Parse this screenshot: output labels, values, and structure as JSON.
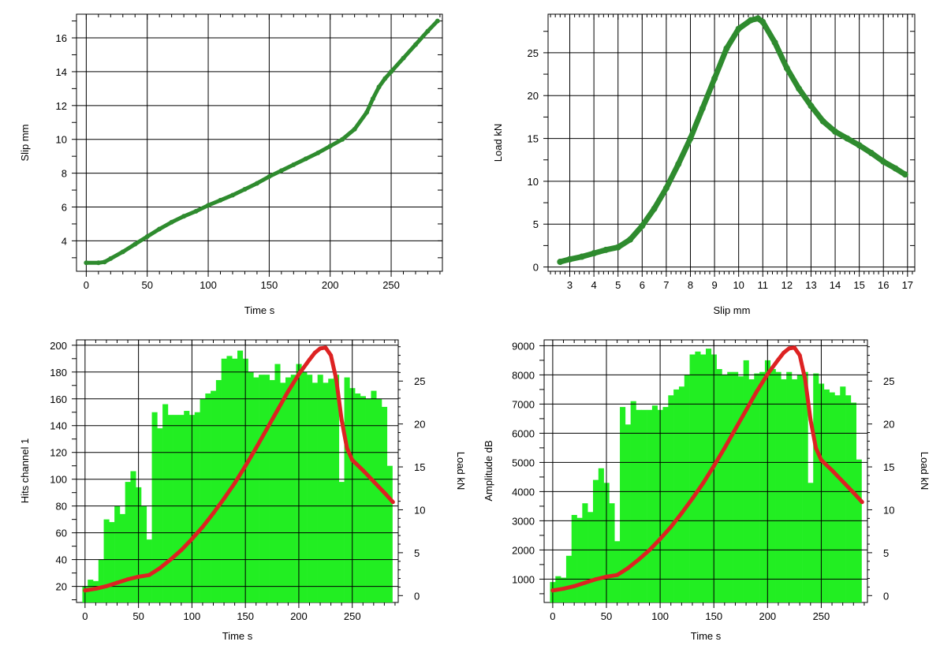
{
  "chart_data": [
    {
      "type": "line",
      "xlabel": "Time s",
      "ylabel": "Slip mm",
      "xlim": [
        -8,
        292
      ],
      "ylim": [
        2.2,
        17.4
      ],
      "xticks": [
        0,
        50,
        100,
        150,
        200,
        250
      ],
      "yticks": [
        4,
        6,
        8,
        10,
        12,
        14,
        16
      ],
      "grid": true,
      "series": [
        {
          "color": "#2e8b2e",
          "x": [
            0,
            10,
            15,
            20,
            30,
            40,
            50,
            60,
            70,
            80,
            90,
            100,
            110,
            120,
            130,
            140,
            150,
            160,
            170,
            180,
            190,
            200,
            210,
            220,
            230,
            235,
            240,
            245,
            250,
            260,
            270,
            280,
            288
          ],
          "y": [
            2.7,
            2.7,
            2.75,
            2.95,
            3.35,
            3.8,
            4.25,
            4.7,
            5.1,
            5.45,
            5.75,
            6.1,
            6.4,
            6.7,
            7.05,
            7.4,
            7.8,
            8.15,
            8.5,
            8.85,
            9.2,
            9.6,
            10.0,
            10.6,
            11.6,
            12.4,
            13.1,
            13.6,
            14.0,
            14.8,
            15.6,
            16.4,
            17.0
          ]
        }
      ]
    },
    {
      "type": "scatter",
      "xlabel": "Slip mm",
      "ylabel": "Load kN",
      "xlim": [
        2.1,
        17.3
      ],
      "ylim": [
        -0.5,
        29.5
      ],
      "xticks": [
        3,
        4,
        5,
        6,
        7,
        8,
        9,
        10,
        11,
        12,
        13,
        14,
        15,
        16,
        17
      ],
      "yticks": [
        0,
        5,
        10,
        15,
        20,
        25
      ],
      "grid": true,
      "series": [
        {
          "color": "#2e8b2e",
          "x": [
            2.6,
            3.0,
            3.5,
            4.0,
            4.5,
            5.0,
            5.5,
            6.0,
            6.5,
            7.0,
            7.5,
            8.0,
            8.5,
            9.0,
            9.5,
            10.0,
            10.5,
            10.8,
            11.0,
            11.5,
            12.0,
            12.5,
            13.0,
            13.5,
            14.0,
            14.5,
            15.0,
            15.5,
            16.0,
            16.5,
            16.9
          ],
          "y": [
            0.6,
            0.9,
            1.2,
            1.6,
            2.0,
            2.3,
            3.2,
            4.8,
            6.8,
            9.2,
            12.0,
            15.0,
            18.5,
            22.0,
            25.5,
            27.8,
            28.8,
            29.0,
            28.6,
            26.2,
            23.2,
            20.8,
            18.8,
            17.0,
            15.8,
            15.0,
            14.2,
            13.3,
            12.3,
            11.5,
            10.8
          ]
        }
      ]
    },
    {
      "type": "bar",
      "xlabel": "Time s",
      "ylabel": "Hits channel 1",
      "y2label": "Load kN",
      "xlim": [
        -8,
        293
      ],
      "ylim": [
        8,
        204
      ],
      "y2lim": [
        -0.8,
        29.8
      ],
      "xticks": [
        0,
        50,
        100,
        150,
        200,
        250
      ],
      "yticks": [
        20,
        40,
        60,
        80,
        100,
        120,
        140,
        160,
        180,
        200
      ],
      "y2ticks": [
        0,
        5,
        10,
        15,
        20,
        25
      ],
      "grid": true,
      "bars": {
        "color": "#22ee22",
        "x": [
          0,
          5,
          10,
          15,
          20,
          25,
          30,
          35,
          40,
          45,
          50,
          55,
          60,
          65,
          70,
          75,
          80,
          85,
          90,
          95,
          100,
          105,
          110,
          115,
          120,
          125,
          130,
          135,
          140,
          145,
          150,
          155,
          160,
          165,
          170,
          175,
          180,
          185,
          190,
          195,
          200,
          205,
          210,
          215,
          220,
          225,
          230,
          235,
          240,
          245,
          250,
          255,
          260,
          265,
          270,
          275,
          280,
          285
        ],
        "values": [
          20,
          25,
          24,
          40,
          70,
          68,
          80,
          74,
          98,
          106,
          94,
          80,
          55,
          150,
          138,
          156,
          148,
          148,
          148,
          151,
          148,
          150,
          160,
          164,
          166,
          174,
          190,
          192,
          190,
          196,
          190,
          180,
          176,
          178,
          178,
          174,
          186,
          172,
          176,
          178,
          186,
          180,
          178,
          172,
          178,
          172,
          175,
          178,
          98,
          176,
          168,
          164,
          162,
          160,
          166,
          160,
          154,
          110
        ]
      },
      "line": {
        "name": "Load kN",
        "color": "#dd2222",
        "x": [
          0,
          10,
          20,
          30,
          40,
          50,
          60,
          70,
          80,
          90,
          100,
          110,
          120,
          130,
          140,
          150,
          160,
          170,
          180,
          190,
          200,
          210,
          215,
          220,
          225,
          230,
          235,
          240,
          245,
          250,
          260,
          270,
          280,
          288
        ],
        "y": [
          0.6,
          0.8,
          1.1,
          1.5,
          1.9,
          2.2,
          2.4,
          3.2,
          4.2,
          5.3,
          6.6,
          8.0,
          9.6,
          11.3,
          13.1,
          15.1,
          17.2,
          19.4,
          21.6,
          23.8,
          25.8,
          27.5,
          28.3,
          28.8,
          28.9,
          28.0,
          25.2,
          20.5,
          17.2,
          15.8,
          14.6,
          13.3,
          12.0,
          10.9
        ]
      }
    },
    {
      "type": "bar",
      "xlabel": "Time s",
      "ylabel": "Amplitude dB",
      "y2label": "Load kN",
      "xlim": [
        -8,
        293
      ],
      "ylim": [
        200,
        9200
      ],
      "y2lim": [
        -0.8,
        29.8
      ],
      "xticks": [
        0,
        50,
        100,
        150,
        200,
        250
      ],
      "yticks": [
        1000,
        2000,
        3000,
        4000,
        5000,
        6000,
        7000,
        8000,
        9000
      ],
      "y2ticks": [
        0,
        5,
        10,
        15,
        20,
        25
      ],
      "grid": true,
      "bars": {
        "color": "#22ee22",
        "x": [
          0,
          5,
          10,
          15,
          20,
          25,
          30,
          35,
          40,
          45,
          50,
          55,
          60,
          65,
          70,
          75,
          80,
          85,
          90,
          95,
          100,
          105,
          110,
          115,
          120,
          125,
          130,
          135,
          140,
          145,
          150,
          155,
          160,
          165,
          170,
          175,
          180,
          185,
          190,
          195,
          200,
          205,
          210,
          215,
          220,
          225,
          230,
          235,
          240,
          245,
          250,
          255,
          260,
          265,
          270,
          275,
          280,
          285
        ],
        "values": [
          900,
          1100,
          1050,
          1800,
          3200,
          3100,
          3600,
          3300,
          4400,
          4800,
          4300,
          3600,
          2300,
          6900,
          6300,
          7100,
          6800,
          6800,
          6800,
          6950,
          6800,
          6900,
          7300,
          7500,
          7600,
          8000,
          8700,
          8800,
          8700,
          8900,
          8700,
          8200,
          8000,
          8100,
          8100,
          7950,
          8500,
          7850,
          8050,
          8100,
          8500,
          8200,
          8100,
          7850,
          8100,
          7850,
          8000,
          8100,
          4300,
          8050,
          7700,
          7500,
          7400,
          7300,
          7600,
          7300,
          7050,
          5100
        ]
      },
      "line": {
        "name": "Load kN",
        "color": "#dd2222",
        "x": [
          0,
          10,
          20,
          30,
          40,
          50,
          60,
          70,
          80,
          90,
          100,
          110,
          120,
          130,
          140,
          150,
          160,
          170,
          180,
          190,
          200,
          210,
          215,
          220,
          225,
          230,
          235,
          240,
          245,
          250,
          260,
          270,
          280,
          288
        ],
        "y": [
          0.6,
          0.8,
          1.1,
          1.5,
          1.9,
          2.2,
          2.4,
          3.2,
          4.2,
          5.3,
          6.6,
          8.0,
          9.6,
          11.3,
          13.1,
          15.1,
          17.2,
          19.4,
          21.6,
          23.8,
          25.8,
          27.5,
          28.3,
          28.8,
          28.9,
          28.0,
          25.2,
          20.5,
          17.2,
          15.8,
          14.6,
          13.3,
          12.0,
          10.9
        ]
      }
    }
  ]
}
